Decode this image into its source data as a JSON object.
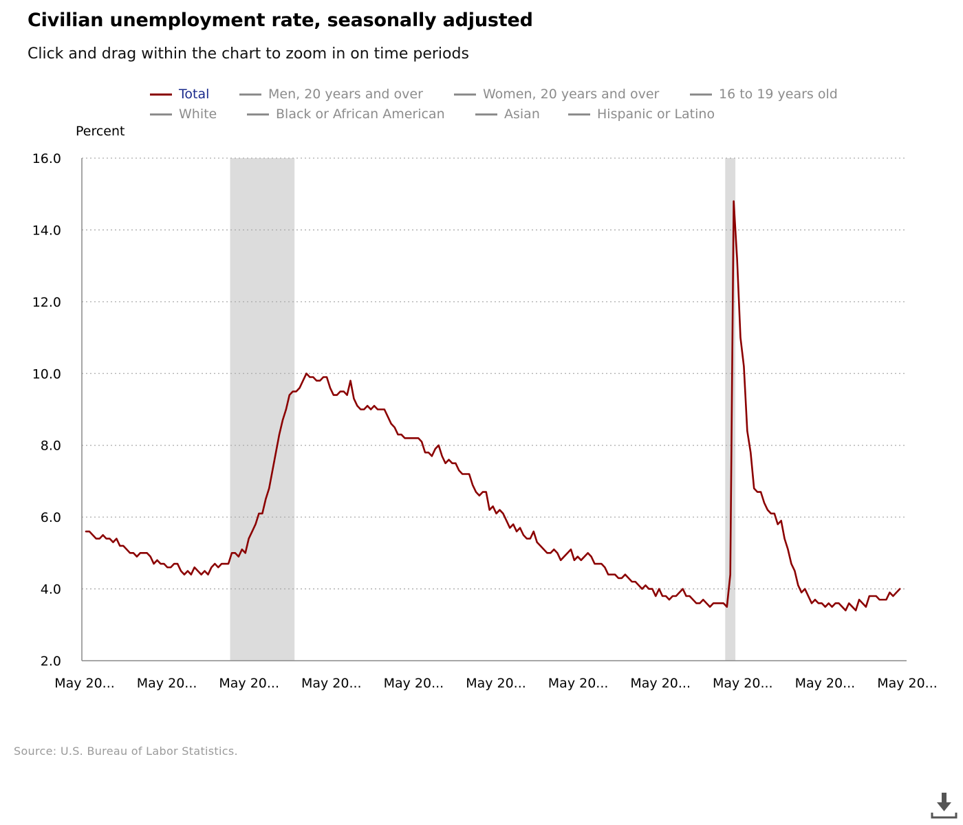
{
  "title": "Civilian unemployment rate, seasonally adjusted",
  "subtitle": "Click and drag within the chart to zoom in on time periods",
  "source": "Source: U.S. Bureau of Labor Statistics.",
  "legend": [
    {
      "label": "Total",
      "active": true
    },
    {
      "label": "Men, 20 years and over",
      "active": false
    },
    {
      "label": "Women, 20 years and over",
      "active": false
    },
    {
      "label": "16 to 19 years old",
      "active": false
    },
    {
      "label": "White",
      "active": false
    },
    {
      "label": "Black or African American",
      "active": false
    },
    {
      "label": "Asian",
      "active": false
    },
    {
      "label": "Hispanic or Latino",
      "active": false
    }
  ],
  "icons": {
    "download": "download-icon"
  },
  "colors": {
    "series": "#8b0000",
    "recession": "#dcdcdc",
    "grid": "#aaaaaa",
    "legend_inactive": "#8c8c8c",
    "legend_active_text": "#1a2a8c"
  },
  "chart_data": {
    "type": "line",
    "title": "Civilian unemployment rate, seasonally adjusted",
    "ylabel": "Percent",
    "xlabel": "",
    "ylim": [
      2.0,
      16.0
    ],
    "yticks": [
      "16.0",
      "14.0",
      "12.0",
      "10.0",
      "8.0",
      "6.0",
      "4.0",
      "2.0"
    ],
    "x_tick_labels": [
      "May 20...",
      "May 20...",
      "May 20...",
      "May 20...",
      "May 20...",
      "May 20...",
      "May 20...",
      "May 20...",
      "May 20...",
      "May 20...",
      "May 20..."
    ],
    "grid": true,
    "legend_position": "top",
    "recession_bands": [
      {
        "start": "2007-12",
        "end": "2009-06"
      },
      {
        "start": "2020-02",
        "end": "2020-04"
      }
    ],
    "series": [
      {
        "name": "Total",
        "start": "2004-05",
        "frequency": "monthly",
        "values": [
          5.6,
          5.6,
          5.5,
          5.4,
          5.4,
          5.5,
          5.4,
          5.4,
          5.3,
          5.4,
          5.2,
          5.2,
          5.1,
          5.0,
          5.0,
          4.9,
          5.0,
          5.0,
          5.0,
          4.9,
          4.7,
          4.8,
          4.7,
          4.7,
          4.6,
          4.6,
          4.7,
          4.7,
          4.5,
          4.4,
          4.5,
          4.4,
          4.6,
          4.5,
          4.4,
          4.5,
          4.4,
          4.6,
          4.7,
          4.6,
          4.7,
          4.7,
          4.7,
          5.0,
          5.0,
          4.9,
          5.1,
          5.0,
          5.4,
          5.6,
          5.8,
          6.1,
          6.1,
          6.5,
          6.8,
          7.3,
          7.8,
          8.3,
          8.7,
          9.0,
          9.4,
          9.5,
          9.5,
          9.6,
          9.8,
          10.0,
          9.9,
          9.9,
          9.8,
          9.8,
          9.9,
          9.9,
          9.6,
          9.4,
          9.4,
          9.5,
          9.5,
          9.4,
          9.8,
          9.3,
          9.1,
          9.0,
          9.0,
          9.1,
          9.0,
          9.1,
          9.0,
          9.0,
          9.0,
          8.8,
          8.6,
          8.5,
          8.3,
          8.3,
          8.2,
          8.2,
          8.2,
          8.2,
          8.2,
          8.1,
          7.8,
          7.8,
          7.7,
          7.9,
          8.0,
          7.7,
          7.5,
          7.6,
          7.5,
          7.5,
          7.3,
          7.2,
          7.2,
          7.2,
          6.9,
          6.7,
          6.6,
          6.7,
          6.7,
          6.2,
          6.3,
          6.1,
          6.2,
          6.1,
          5.9,
          5.7,
          5.8,
          5.6,
          5.7,
          5.5,
          5.4,
          5.4,
          5.6,
          5.3,
          5.2,
          5.1,
          5.0,
          5.0,
          5.1,
          5.0,
          4.8,
          4.9,
          5.0,
          5.1,
          4.8,
          4.9,
          4.8,
          4.9,
          5.0,
          4.9,
          4.7,
          4.7,
          4.7,
          4.6,
          4.4,
          4.4,
          4.4,
          4.3,
          4.3,
          4.4,
          4.3,
          4.2,
          4.2,
          4.1,
          4.0,
          4.1,
          4.0,
          4.0,
          3.8,
          4.0,
          3.8,
          3.8,
          3.7,
          3.8,
          3.8,
          3.9,
          4.0,
          3.8,
          3.8,
          3.7,
          3.6,
          3.6,
          3.7,
          3.6,
          3.5,
          3.6,
          3.6,
          3.6,
          3.6,
          3.5,
          4.4,
          14.8,
          13.2,
          11.0,
          10.2,
          8.4,
          7.8,
          6.8,
          6.7,
          6.7,
          6.4,
          6.2,
          6.1,
          6.1,
          5.8,
          5.9,
          5.4,
          5.1,
          4.7,
          4.5,
          4.1,
          3.9,
          4.0,
          3.8,
          3.6,
          3.7,
          3.6,
          3.6,
          3.5,
          3.6,
          3.5,
          3.6,
          3.6,
          3.5,
          3.4,
          3.6,
          3.5,
          3.4,
          3.7,
          3.6,
          3.5,
          3.8,
          3.8,
          3.8,
          3.7,
          3.7,
          3.7,
          3.9,
          3.8,
          3.9,
          4.0
        ]
      }
    ]
  }
}
